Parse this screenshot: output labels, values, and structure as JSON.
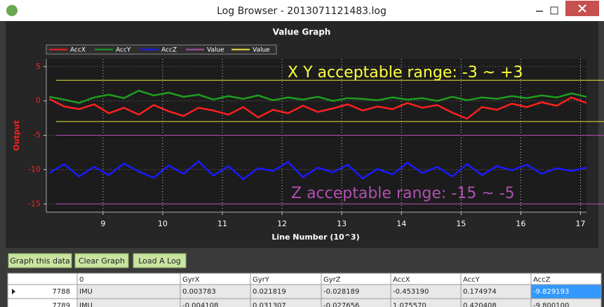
{
  "window": {
    "title": "Log Browser - 2013071121483.log"
  },
  "chart_data": {
    "type": "line",
    "title": "Value Graph",
    "x_label": "Line Number (10^3)",
    "y_label": "Output",
    "x": [
      8.1,
      8.35,
      8.6,
      8.85,
      9.1,
      9.35,
      9.6,
      9.85,
      10.1,
      10.35,
      10.6,
      10.85,
      11.1,
      11.35,
      11.6,
      11.85,
      12.1,
      12.35,
      12.6,
      12.85,
      13.1,
      13.35,
      13.6,
      13.85,
      14.1,
      14.35,
      14.6,
      14.85,
      15.1,
      15.35,
      15.6,
      15.85,
      16.1,
      16.35,
      16.6,
      16.85,
      17.1
    ],
    "series": [
      {
        "name": "AccX",
        "color": "#ff2020",
        "values": [
          0.3,
          -0.8,
          -1.2,
          -0.5,
          -1.8,
          -1.0,
          -2.0,
          -0.6,
          -1.5,
          -2.2,
          -1.0,
          -1.4,
          -2.0,
          -0.9,
          -2.4,
          -1.3,
          -1.8,
          -0.7,
          -1.6,
          -1.1,
          -0.5,
          -1.4,
          -0.8,
          -1.2,
          -0.3,
          -1.0,
          -0.6,
          -1.7,
          -2.6,
          -0.9,
          -1.3,
          -0.4,
          -0.9,
          -0.2,
          -0.7,
          0.5,
          -0.3
        ]
      },
      {
        "name": "AccY",
        "color": "#1e9e1e",
        "values": [
          0.6,
          0.2,
          -0.3,
          0.5,
          0.9,
          0.4,
          1.5,
          0.8,
          1.2,
          0.6,
          0.9,
          0.2,
          0.7,
          0.3,
          0.8,
          0.1,
          0.5,
          0.2,
          0.6,
          0.0,
          0.4,
          0.3,
          0.1,
          0.5,
          0.2,
          0.4,
          0.0,
          0.6,
          0.1,
          0.5,
          0.3,
          0.7,
          0.4,
          0.8,
          0.5,
          1.1,
          0.6
        ]
      },
      {
        "name": "AccZ",
        "color": "#1a1aff",
        "values": [
          -10.5,
          -9.2,
          -11.0,
          -9.6,
          -10.8,
          -9.1,
          -10.3,
          -11.2,
          -9.4,
          -10.6,
          -8.8,
          -10.9,
          -9.5,
          -11.4,
          -9.8,
          -10.2,
          -8.9,
          -11.1,
          -9.7,
          -10.4,
          -9.3,
          -11.3,
          -9.9,
          -10.7,
          -9.0,
          -10.5,
          -9.6,
          -11.0,
          -9.2,
          -10.8,
          -9.5,
          -10.1,
          -9.3,
          -10.6,
          -9.8,
          -10.2,
          -9.7
        ]
      }
    ],
    "reference_lines": [
      {
        "name": "Value",
        "color": "#b050b0",
        "values": [
          -5,
          -15
        ]
      },
      {
        "name": "Value",
        "color": "#e8e83a",
        "values": [
          3,
          -3
        ]
      }
    ],
    "annotations": [
      {
        "text": "X Y acceptable range: -3 ~ +3",
        "color": "#ffff40"
      },
      {
        "text": "Z acceptable range: -15 ~ -5",
        "color": "#b050b0"
      }
    ],
    "xlim": [
      8.05,
      17.1
    ],
    "ylim": [
      -16.2,
      6.1
    ],
    "xticks": [
      9,
      10,
      11,
      12,
      13,
      14,
      15,
      16,
      17
    ],
    "yticks": [
      -15,
      -10,
      -5,
      0,
      5
    ],
    "grid": true,
    "legend_position": "top-left"
  },
  "buttons": [
    "Graph this data",
    "Clear Graph",
    "Load A Log"
  ],
  "table": {
    "columns": [
      "0",
      "GyrX",
      "GyrY",
      "GyrZ",
      "AccX",
      "AccY",
      "AccZ"
    ],
    "rows": [
      {
        "id": "7788",
        "cells": [
          "IMU",
          "0.003783",
          "0.021819",
          "-0.028189",
          "-0.453190",
          "0.174974",
          "-9.829193"
        ]
      },
      {
        "id": "7789",
        "cells": [
          "IMU",
          "-0.004108",
          "0.031307",
          "-0.027656",
          "1.075570",
          "0.420408",
          "-9.800100"
        ]
      }
    ]
  }
}
